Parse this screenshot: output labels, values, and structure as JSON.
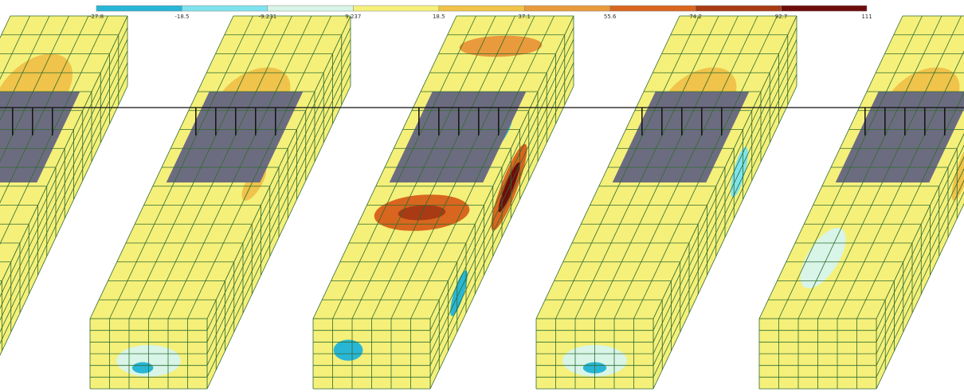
{
  "legend": {
    "labels": [
      "-27.8",
      "-18.5",
      "-9.231",
      "9.237",
      "18.5",
      "37.1",
      "55.6",
      "74.2",
      "92.7",
      "111"
    ],
    "colors": [
      "#29b6d6",
      "#7fe3ee",
      "#d8f5e8",
      "#f5f07a",
      "#f0c34a",
      "#e89a3c",
      "#d9661e",
      "#a83a14",
      "#6e0c0c"
    ]
  }
}
